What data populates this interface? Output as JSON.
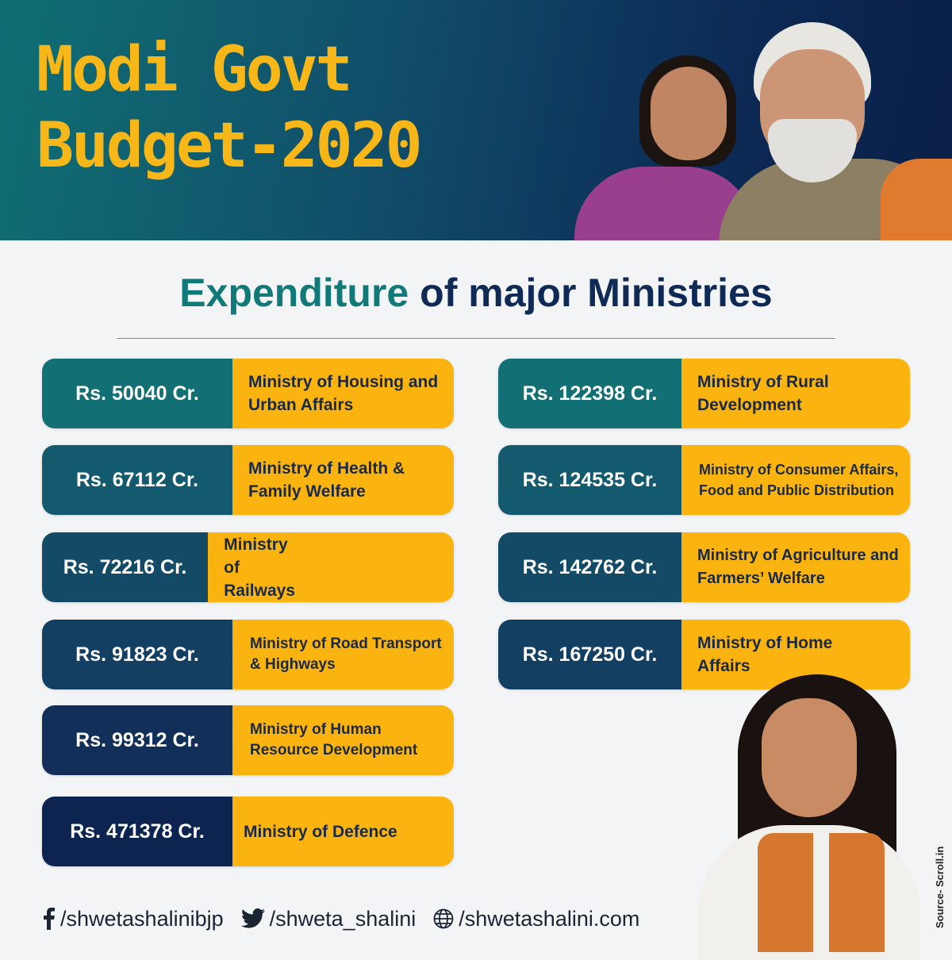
{
  "header": {
    "title_line1": "Modi Govt",
    "title_line2": "Budget-2020"
  },
  "subtitle": {
    "part1": "Expenditure",
    "part2": "of major Ministries"
  },
  "left_items": [
    {
      "amount": "Rs. 50040 Cr.",
      "ministry": "Ministry of Housing and Urban Affairs"
    },
    {
      "amount": "Rs. 67112 Cr.",
      "ministry": "Ministry of Health & Family Welfare"
    },
    {
      "amount": "Rs. 72216 Cr.",
      "ministry": "Ministry of Railways"
    },
    {
      "amount": "Rs. 91823 Cr.",
      "ministry": "Ministry of Road Transport & Highways"
    },
    {
      "amount": "Rs. 99312 Cr.",
      "ministry": "Ministry of Human Resource Development"
    },
    {
      "amount": "Rs. 471378 Cr.",
      "ministry": "Ministry of Defence"
    }
  ],
  "right_items": [
    {
      "amount": "Rs. 122398 Cr.",
      "ministry": "Ministry of Rural Development"
    },
    {
      "amount": "Rs. 124535 Cr.",
      "ministry": "Ministry of Consumer Affairs, Food and Public Distribution"
    },
    {
      "amount": "Rs. 142762 Cr.",
      "ministry": "Ministry of Agriculture and Farmers’ Welfare"
    },
    {
      "amount": "Rs. 167250 Cr.",
      "ministry": "Ministry of Home Affairs"
    }
  ],
  "source": "Source- Scroll.in",
  "footer": {
    "facebook": "/shwetashalinibjp",
    "twitter": "/shweta_shalini",
    "website": "/shwetashalini.com",
    "facebook_icon": "facebook-icon",
    "twitter_icon": "twitter-icon",
    "globe_icon": "globe-icon"
  },
  "colors": {
    "accent_yellow": "#fbb40f",
    "title_yellow": "#f7b718",
    "navy": "#0f2b55",
    "teal": "#117a79"
  }
}
